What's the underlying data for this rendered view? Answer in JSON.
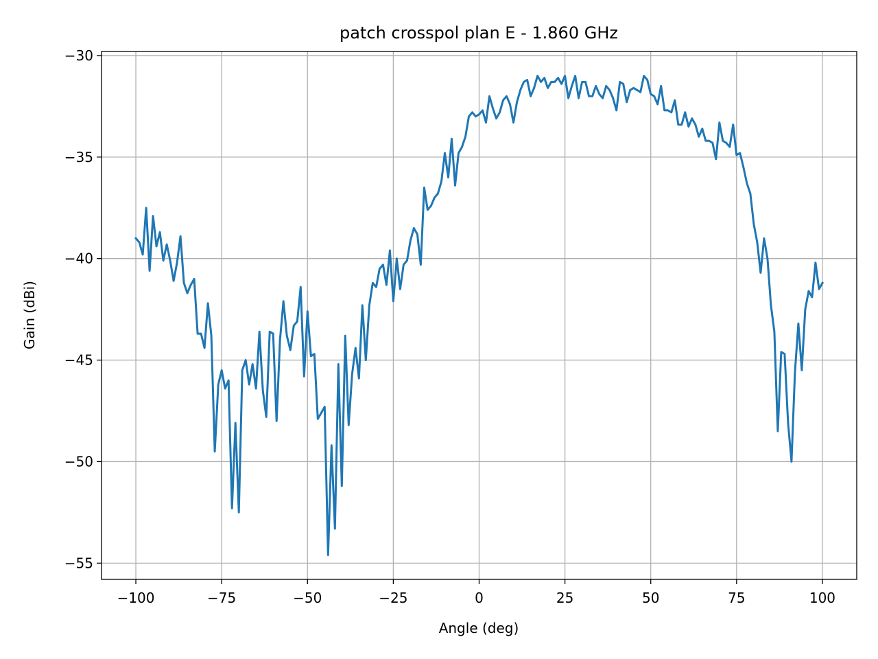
{
  "chart_data": {
    "type": "line",
    "title": "patch crosspol plan E - 1.860 GHz",
    "xlabel": "Angle (deg)",
    "ylabel": "Gain (dBi)",
    "xlim": [
      -110,
      110
    ],
    "ylim": [
      -55.8,
      -29.8
    ],
    "xticks": [
      -100,
      -75,
      -50,
      -25,
      0,
      25,
      50,
      75,
      100
    ],
    "xtick_labels": [
      "−100",
      "−75",
      "−50",
      "−25",
      "0",
      "25",
      "50",
      "75",
      "100"
    ],
    "yticks": [
      -55,
      -50,
      -45,
      -40,
      -35,
      -30
    ],
    "ytick_labels": [
      "−55",
      "−50",
      "−45",
      "−40",
      "−35",
      "−30"
    ],
    "grid": true,
    "legend": "none",
    "colors": {
      "line": "#1f77b4",
      "grid": "#b0b0b0",
      "axes": "#000000"
    },
    "series": [
      {
        "x": [
          -100,
          -99,
          -98,
          -97,
          -96,
          -95,
          -94,
          -93,
          -92,
          -91,
          -90,
          -89,
          -88,
          -87,
          -86,
          -85,
          -84,
          -83,
          -82,
          -81,
          -80,
          -79,
          -78,
          -77,
          -76,
          -75,
          -74,
          -73,
          -72,
          -71,
          -70,
          -69,
          -68,
          -67,
          -66,
          -65,
          -64,
          -63,
          -62,
          -61,
          -60,
          -59,
          -58,
          -57,
          -56,
          -55,
          -54,
          -53,
          -52,
          -51,
          -50,
          -49,
          -48,
          -47,
          -46,
          -45,
          -44,
          -43,
          -42,
          -41,
          -40,
          -39,
          -38,
          -37,
          -36,
          -35,
          -34,
          -33,
          -32,
          -31,
          -30,
          -29,
          -28,
          -27,
          -26,
          -25,
          -24,
          -23,
          -22,
          -21,
          -20,
          -19,
          -18,
          -17,
          -16,
          -15,
          -14,
          -13,
          -12,
          -11,
          -10,
          -9,
          -8,
          -7,
          -6,
          -5,
          -4,
          -3,
          -2,
          -1,
          0,
          1,
          2,
          3,
          4,
          5,
          6,
          7,
          8,
          9,
          10,
          11,
          12,
          13,
          14,
          15,
          16,
          17,
          18,
          19,
          20,
          21,
          22,
          23,
          24,
          25,
          26,
          27,
          28,
          29,
          30,
          31,
          32,
          33,
          34,
          35,
          36,
          37,
          38,
          39,
          40,
          41,
          42,
          43,
          44,
          45,
          46,
          47,
          48,
          49,
          50,
          51,
          52,
          53,
          54,
          55,
          56,
          57,
          58,
          59,
          60,
          61,
          62,
          63,
          64,
          65,
          66,
          67,
          68,
          69,
          70,
          71,
          72,
          73,
          74,
          75,
          76,
          77,
          78,
          79,
          80,
          81,
          82,
          83,
          84,
          85,
          86,
          87,
          88,
          89,
          90,
          91,
          92,
          93,
          94,
          95,
          96,
          97,
          98,
          99,
          100
        ],
        "y": [
          -39.0,
          -39.2,
          -39.8,
          -37.5,
          -40.6,
          -37.9,
          -39.4,
          -38.7,
          -40.1,
          -39.3,
          -40.1,
          -41.1,
          -40.2,
          -38.9,
          -41.2,
          -41.7,
          -41.3,
          -41.0,
          -43.7,
          -43.7,
          -44.4,
          -42.2,
          -43.8,
          -49.5,
          -46.2,
          -45.5,
          -46.4,
          -46.0,
          -52.3,
          -48.1,
          -52.5,
          -45.5,
          -45.0,
          -46.2,
          -45.2,
          -46.4,
          -43.6,
          -46.5,
          -47.8,
          -43.6,
          -43.7,
          -48.0,
          -44.0,
          -42.1,
          -43.8,
          -44.5,
          -43.3,
          -43.1,
          -41.4,
          -45.8,
          -42.6,
          -44.8,
          -44.7,
          -47.9,
          -47.6,
          -47.3,
          -54.6,
          -49.2,
          -53.3,
          -45.2,
          -51.2,
          -43.8,
          -48.2,
          -45.7,
          -44.4,
          -45.9,
          -42.3,
          -45.0,
          -42.3,
          -41.2,
          -41.4,
          -40.5,
          -40.3,
          -41.3,
          -39.6,
          -42.1,
          -40.0,
          -41.5,
          -40.3,
          -40.1,
          -39.1,
          -38.5,
          -38.8,
          -40.3,
          -36.5,
          -37.6,
          -37.4,
          -37.0,
          -36.8,
          -36.2,
          -34.8,
          -36.0,
          -34.1,
          -36.4,
          -34.8,
          -34.5,
          -34.0,
          -33.0,
          -32.8,
          -33.0,
          -32.9,
          -32.7,
          -33.3,
          -32.0,
          -32.6,
          -33.1,
          -32.8,
          -32.2,
          -32.0,
          -32.4,
          -33.3,
          -32.3,
          -31.7,
          -31.3,
          -31.2,
          -32.0,
          -31.6,
          -31.0,
          -31.3,
          -31.1,
          -31.6,
          -31.3,
          -31.3,
          -31.1,
          -31.4,
          -31.0,
          -32.1,
          -31.5,
          -31.0,
          -32.1,
          -31.3,
          -31.3,
          -32.0,
          -32.0,
          -31.5,
          -31.9,
          -32.1,
          -31.5,
          -31.7,
          -32.1,
          -32.7,
          -31.3,
          -31.4,
          -32.3,
          -31.7,
          -31.6,
          -31.7,
          -31.8,
          -31.0,
          -31.2,
          -31.9,
          -32.0,
          -32.4,
          -31.5,
          -32.7,
          -32.7,
          -32.8,
          -32.2,
          -33.4,
          -33.4,
          -32.8,
          -33.5,
          -33.1,
          -33.4,
          -34.0,
          -33.6,
          -34.2,
          -34.2,
          -34.3,
          -35.1,
          -33.3,
          -34.2,
          -34.3,
          -34.5,
          -33.4,
          -34.9,
          -34.8,
          -35.5,
          -36.3,
          -36.8,
          -38.3,
          -39.2,
          -40.7,
          -39.0,
          -40.0,
          -42.3,
          -43.6,
          -48.5,
          -44.6,
          -44.7,
          -48.1,
          -50.0,
          -45.6,
          -43.2,
          -45.5,
          -42.5,
          -41.6,
          -41.9,
          -40.2,
          -41.5,
          -41.2
        ]
      }
    ]
  }
}
